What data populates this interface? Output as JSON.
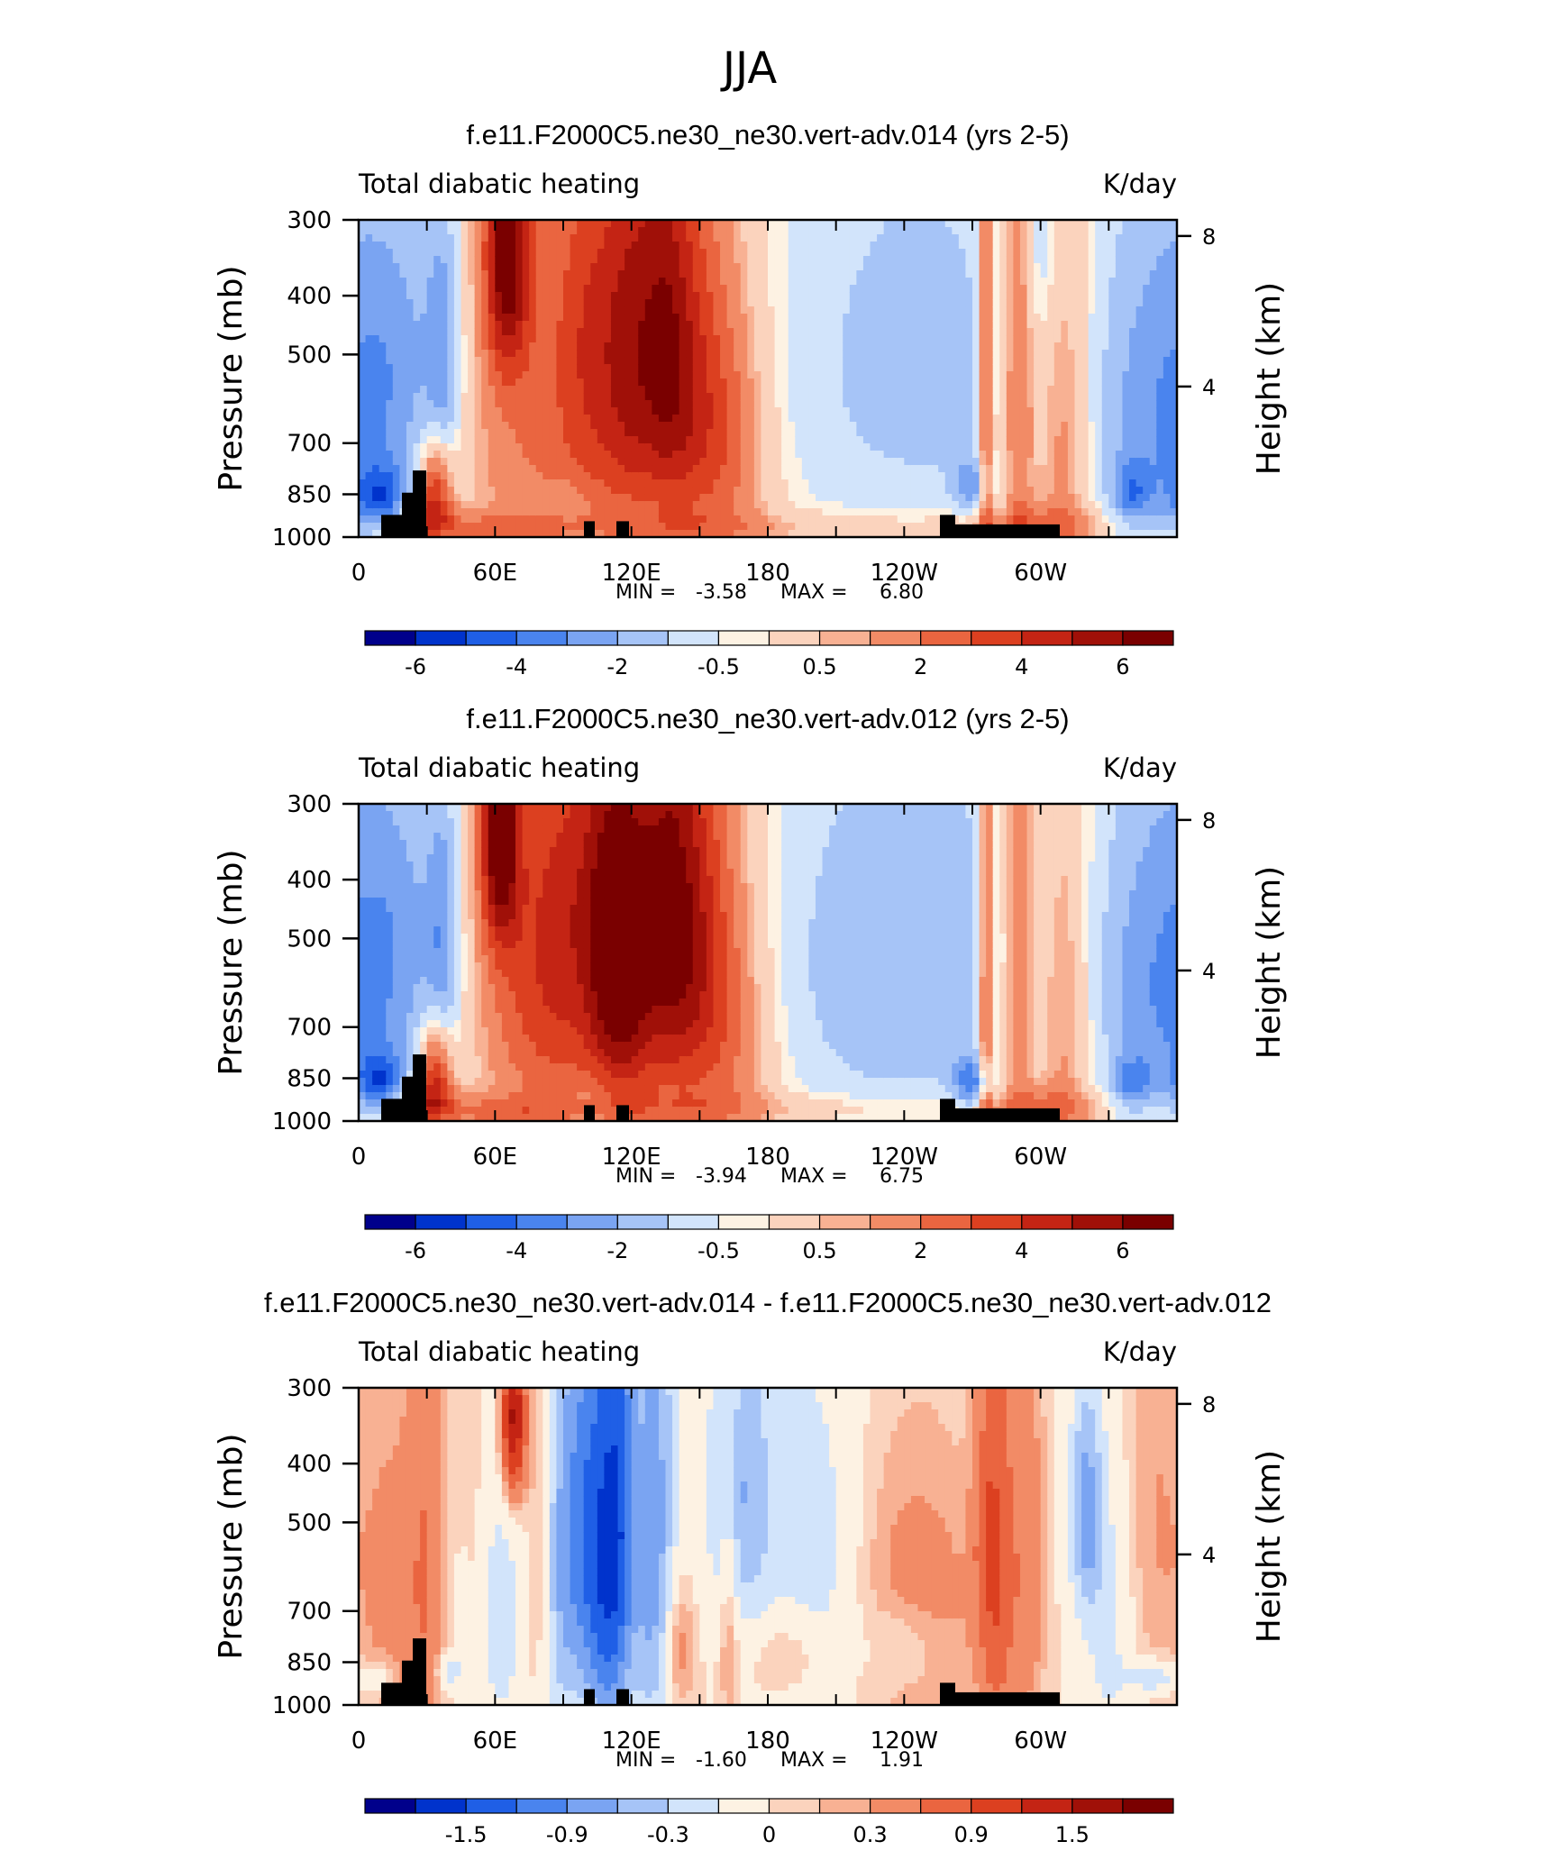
{
  "figure": {
    "title": "JJA"
  },
  "colors": {
    "ramp": [
      "#00008b",
      "#0033cc",
      "#1f5fe6",
      "#4a84ee",
      "#7aa4f2",
      "#a6c4f7",
      "#d2e4fb",
      "#fdf2e3",
      "#fbd3bd",
      "#f8b193",
      "#f28b66",
      "#ea6540",
      "#dc4020",
      "#c42414",
      "#a01008",
      "#7a0000"
    ]
  },
  "chart_data": [
    {
      "type": "heatmap",
      "title": "f.e11.F2000C5.ne30_ne30.vert-adv.014 (yrs 2-5)",
      "left_string": "Total diabatic heating",
      "right_string": "K/day",
      "ylabel": "Pressure (mb)",
      "ylabel_right": "Height (km)",
      "xticks": [
        "0",
        "60E",
        "120E",
        "180",
        "120W",
        "60W"
      ],
      "yticks": [
        "300",
        "400",
        "500",
        "700",
        "850",
        "1000"
      ],
      "yticks_right": [
        "8",
        "4"
      ],
      "min_label": "MIN =",
      "min_value": "-3.58",
      "max_label": "MAX =",
      "max_value": "6.80",
      "colorbar_labels": [
        "-6",
        "-4",
        "-2",
        "-0.5",
        "0.5",
        "2",
        "4",
        "6"
      ],
      "levels": [
        -7,
        -6,
        -5,
        -4,
        -3,
        -2,
        -1,
        -0.5,
        0.5,
        1,
        2,
        3,
        4,
        5,
        6,
        7
      ],
      "blobs": [
        [
          2,
          700,
          -2.5,
          25,
          300
        ],
        [
          10,
          860,
          -3.5,
          8,
          70
        ],
        [
          20,
          450,
          -1.5,
          15,
          200
        ],
        [
          37,
          520,
          -2.5,
          5,
          220
        ],
        [
          34,
          800,
          4.5,
          5,
          100
        ],
        [
          31,
          920,
          3.5,
          8,
          60
        ],
        [
          65,
          330,
          6.3,
          7,
          130
        ],
        [
          65,
          650,
          1.5,
          14,
          300
        ],
        [
          88,
          500,
          2,
          12,
          300
        ],
        [
          103,
          480,
          2.8,
          9,
          250
        ],
        [
          117,
          500,
          3.3,
          8,
          300
        ],
        [
          133,
          480,
          4.5,
          10,
          280
        ],
        [
          147,
          560,
          3,
          14,
          300
        ],
        [
          163,
          700,
          2,
          14,
          250
        ],
        [
          102,
          800,
          0.7,
          15,
          120
        ],
        [
          93,
          880,
          -0.7,
          5,
          60
        ],
        [
          245,
          520,
          -2.5,
          50,
          350
        ],
        [
          270,
          820,
          -2.5,
          6,
          60
        ],
        [
          276,
          600,
          4,
          2.5,
          500
        ],
        [
          290,
          560,
          3.5,
          5,
          350
        ],
        [
          310,
          650,
          2.5,
          9,
          350
        ],
        [
          300,
          950,
          1.5,
          20,
          50
        ],
        [
          340,
          850,
          -2.5,
          6,
          70
        ],
        [
          350,
          500,
          -1.5,
          20,
          400
        ],
        [
          180,
          960,
          1,
          120,
          40
        ],
        [
          50,
          970,
          1.5,
          30,
          40
        ],
        [
          300,
          320,
          -1.2,
          6,
          100
        ]
      ]
    },
    {
      "type": "heatmap",
      "title": "f.e11.F2000C5.ne30_ne30.vert-adv.012 (yrs 2-5)",
      "left_string": "Total diabatic heating",
      "right_string": "K/day",
      "ylabel": "Pressure (mb)",
      "ylabel_right": "Height (km)",
      "xticks": [
        "0",
        "60E",
        "120E",
        "180",
        "120W",
        "60W"
      ],
      "yticks": [
        "300",
        "400",
        "500",
        "700",
        "850",
        "1000"
      ],
      "yticks_right": [
        "8",
        "4"
      ],
      "min_label": "MIN =",
      "min_value": "-3.94",
      "max_label": "MAX =",
      "max_value": "6.75",
      "colorbar_labels": [
        "-6",
        "-4",
        "-2",
        "-0.5",
        "0.5",
        "2",
        "4",
        "6"
      ],
      "levels": [
        -7,
        -6,
        -5,
        -4,
        -3,
        -2,
        -1,
        -0.5,
        0.5,
        1,
        2,
        3,
        4,
        5,
        6,
        7
      ],
      "blobs": [
        [
          2,
          650,
          -2.5,
          25,
          300
        ],
        [
          10,
          860,
          -3.5,
          8,
          70
        ],
        [
          20,
          450,
          -1.5,
          15,
          200
        ],
        [
          37,
          520,
          -2.5,
          5,
          220
        ],
        [
          34,
          800,
          4.5,
          5,
          100
        ],
        [
          31,
          920,
          3.5,
          8,
          60
        ],
        [
          62,
          330,
          6.3,
          6,
          120
        ],
        [
          75,
          550,
          3,
          16,
          300
        ],
        [
          95,
          450,
          3,
          12,
          250
        ],
        [
          110,
          500,
          4.5,
          8,
          250
        ],
        [
          120,
          550,
          3.8,
          8,
          300
        ],
        [
          135,
          460,
          5,
          10,
          280
        ],
        [
          150,
          500,
          3.5,
          12,
          300
        ],
        [
          165,
          700,
          2,
          15,
          280
        ],
        [
          100,
          800,
          0.7,
          15,
          120
        ],
        [
          240,
          550,
          -3,
          50,
          350
        ],
        [
          270,
          870,
          -3.5,
          6,
          60
        ],
        [
          276,
          600,
          4,
          2.5,
          500
        ],
        [
          290,
          560,
          3.5,
          5,
          350
        ],
        [
          310,
          650,
          2.5,
          9,
          350
        ],
        [
          300,
          950,
          1.5,
          20,
          50
        ],
        [
          340,
          870,
          -2.5,
          6,
          60
        ],
        [
          350,
          500,
          -1.5,
          20,
          400
        ],
        [
          180,
          950,
          1,
          120,
          40
        ],
        [
          50,
          970,
          1.5,
          30,
          40
        ],
        [
          103,
          930,
          -0.7,
          8,
          50
        ]
      ]
    },
    {
      "type": "heatmap",
      "title": "f.e11.F2000C5.ne30_ne30.vert-adv.014 - f.e11.F2000C5.ne30_ne30.vert-adv.012",
      "left_string": "Total diabatic heating",
      "right_string": "K/day",
      "ylabel": "Pressure (mb)",
      "ylabel_right": "Height (km)",
      "xticks": [
        "0",
        "60E",
        "120E",
        "180",
        "120W",
        "60W"
      ],
      "yticks": [
        "300",
        "400",
        "500",
        "700",
        "850",
        "1000"
      ],
      "yticks_right": [
        "8",
        "4"
      ],
      "min_label": "MIN =",
      "min_value": "-1.60",
      "max_label": "MAX =",
      "max_value": "1.91",
      "colorbar_labels": [
        "-1.5",
        "-0.9",
        "-0.3",
        "0",
        "0.3",
        "0.9",
        "1.5"
      ],
      "levels": [
        -2.1,
        -1.8,
        -1.5,
        -1.2,
        -0.9,
        -0.6,
        -0.3,
        0,
        0.15,
        0.3,
        0.6,
        0.9,
        1.2,
        1.5,
        1.8,
        2.1
      ],
      "blobs": [
        [
          15,
          650,
          0.4,
          10,
          300
        ],
        [
          30,
          600,
          0.5,
          6,
          400
        ],
        [
          52,
          600,
          0.3,
          5,
          300
        ],
        [
          68,
          340,
          1.7,
          4,
          80
        ],
        [
          60,
          700,
          -0.5,
          10,
          300
        ],
        [
          80,
          600,
          0.4,
          5,
          300
        ],
        [
          88,
          600,
          -0.8,
          6,
          350
        ],
        [
          98,
          500,
          -0.9,
          6,
          300
        ],
        [
          107,
          600,
          -1.3,
          6,
          400
        ],
        [
          115,
          500,
          -1.2,
          5,
          350
        ],
        [
          130,
          550,
          -1.1,
          7,
          400
        ],
        [
          140,
          800,
          0.6,
          5,
          150
        ],
        [
          163,
          600,
          0.5,
          3,
          300
        ],
        [
          168,
          450,
          -0.9,
          10,
          200
        ],
        [
          200,
          600,
          -0.5,
          15,
          300
        ],
        [
          245,
          700,
          0.5,
          20,
          250
        ],
        [
          275,
          520,
          0.3,
          4,
          150
        ],
        [
          281,
          600,
          0.8,
          6,
          400
        ],
        [
          295,
          600,
          0.5,
          5,
          300
        ],
        [
          320,
          480,
          -1,
          5,
          150
        ],
        [
          330,
          750,
          -0.4,
          8,
          300
        ],
        [
          350,
          500,
          0.3,
          10,
          300
        ],
        [
          350,
          900,
          -0.6,
          8,
          40
        ],
        [
          190,
          820,
          0.4,
          12,
          100
        ],
        [
          240,
          800,
          -0.4,
          12,
          100
        ],
        [
          10,
          900,
          -0.4,
          4,
          40
        ],
        [
          40,
          880,
          -0.5,
          4,
          40
        ]
      ]
    }
  ]
}
